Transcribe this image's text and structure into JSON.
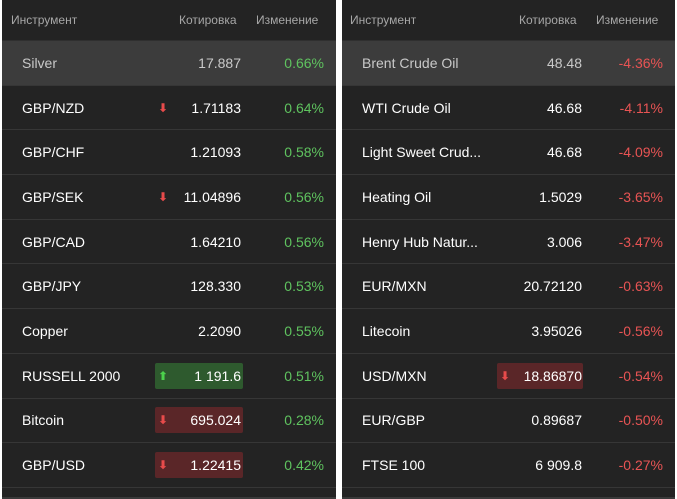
{
  "left": {
    "headers": {
      "instrument": "Инструмент",
      "quote": "Котировка",
      "change": "Изменение"
    },
    "rows": [
      {
        "name": "Silver",
        "price": "17.887",
        "change": "0.66%",
        "trend": "pos",
        "arrow": "",
        "box": "",
        "highlight": true
      },
      {
        "name": "GBP/NZD",
        "price": "1.71183",
        "change": "0.64%",
        "trend": "pos",
        "arrow": "down",
        "box": ""
      },
      {
        "name": "GBP/CHF",
        "price": "1.21093",
        "change": "0.58%",
        "trend": "pos",
        "arrow": "",
        "box": ""
      },
      {
        "name": "GBP/SEK",
        "price": "11.04896",
        "change": "0.56%",
        "trend": "pos",
        "arrow": "down",
        "box": ""
      },
      {
        "name": "GBP/CAD",
        "price": "1.64210",
        "change": "0.56%",
        "trend": "pos",
        "arrow": "",
        "box": ""
      },
      {
        "name": "GBP/JPY",
        "price": "128.330",
        "change": "0.53%",
        "trend": "pos",
        "arrow": "",
        "box": ""
      },
      {
        "name": "Copper",
        "price": "2.2090",
        "change": "0.55%",
        "trend": "pos",
        "arrow": "",
        "box": ""
      },
      {
        "name": "RUSSELL 2000",
        "price": "1 191.6",
        "change": "0.51%",
        "trend": "pos",
        "arrow": "up",
        "box": "up"
      },
      {
        "name": "Bitcoin",
        "price": "695.024",
        "change": "0.28%",
        "trend": "pos",
        "arrow": "down",
        "box": "down"
      },
      {
        "name": "GBP/USD",
        "price": "1.22415",
        "change": "0.42%",
        "trend": "pos",
        "arrow": "down",
        "box": "down"
      }
    ]
  },
  "right": {
    "headers": {
      "instrument": "Инструмент",
      "quote": "Котировка",
      "change": "Изменение"
    },
    "rows": [
      {
        "name": "Brent Crude Oil",
        "price": "48.48",
        "change": "-4.36%",
        "trend": "neg",
        "arrow": "",
        "box": "",
        "highlight": true
      },
      {
        "name": "WTI Crude Oil",
        "price": "46.68",
        "change": "-4.11%",
        "trend": "neg",
        "arrow": "",
        "box": ""
      },
      {
        "name": "Light Sweet Crud...",
        "price": "46.68",
        "change": "-4.09%",
        "trend": "neg",
        "arrow": "",
        "box": ""
      },
      {
        "name": "Heating Oil",
        "price": "1.5029",
        "change": "-3.65%",
        "trend": "neg",
        "arrow": "",
        "box": ""
      },
      {
        "name": "Henry Hub Natur...",
        "price": "3.006",
        "change": "-3.47%",
        "trend": "neg",
        "arrow": "",
        "box": ""
      },
      {
        "name": "EUR/MXN",
        "price": "20.72120",
        "change": "-0.63%",
        "trend": "neg",
        "arrow": "",
        "box": ""
      },
      {
        "name": "Litecoin",
        "price": "3.95026",
        "change": "-0.56%",
        "trend": "neg",
        "arrow": "",
        "box": ""
      },
      {
        "name": "USD/MXN",
        "price": "18.86870",
        "change": "-0.54%",
        "trend": "neg",
        "arrow": "down",
        "box": "down"
      },
      {
        "name": "EUR/GBP",
        "price": "0.89687",
        "change": "-0.50%",
        "trend": "neg",
        "arrow": "",
        "box": ""
      },
      {
        "name": "FTSE 100",
        "price": "6 909.8",
        "change": "-0.27%",
        "trend": "neg",
        "arrow": "",
        "box": ""
      }
    ]
  },
  "icons": {
    "down": "down-arrow-icon",
    "up": "up-arrow-icon"
  },
  "colors": {
    "positive": "#5fc35f",
    "negative": "#e85454",
    "panel_bg": "#232323"
  }
}
